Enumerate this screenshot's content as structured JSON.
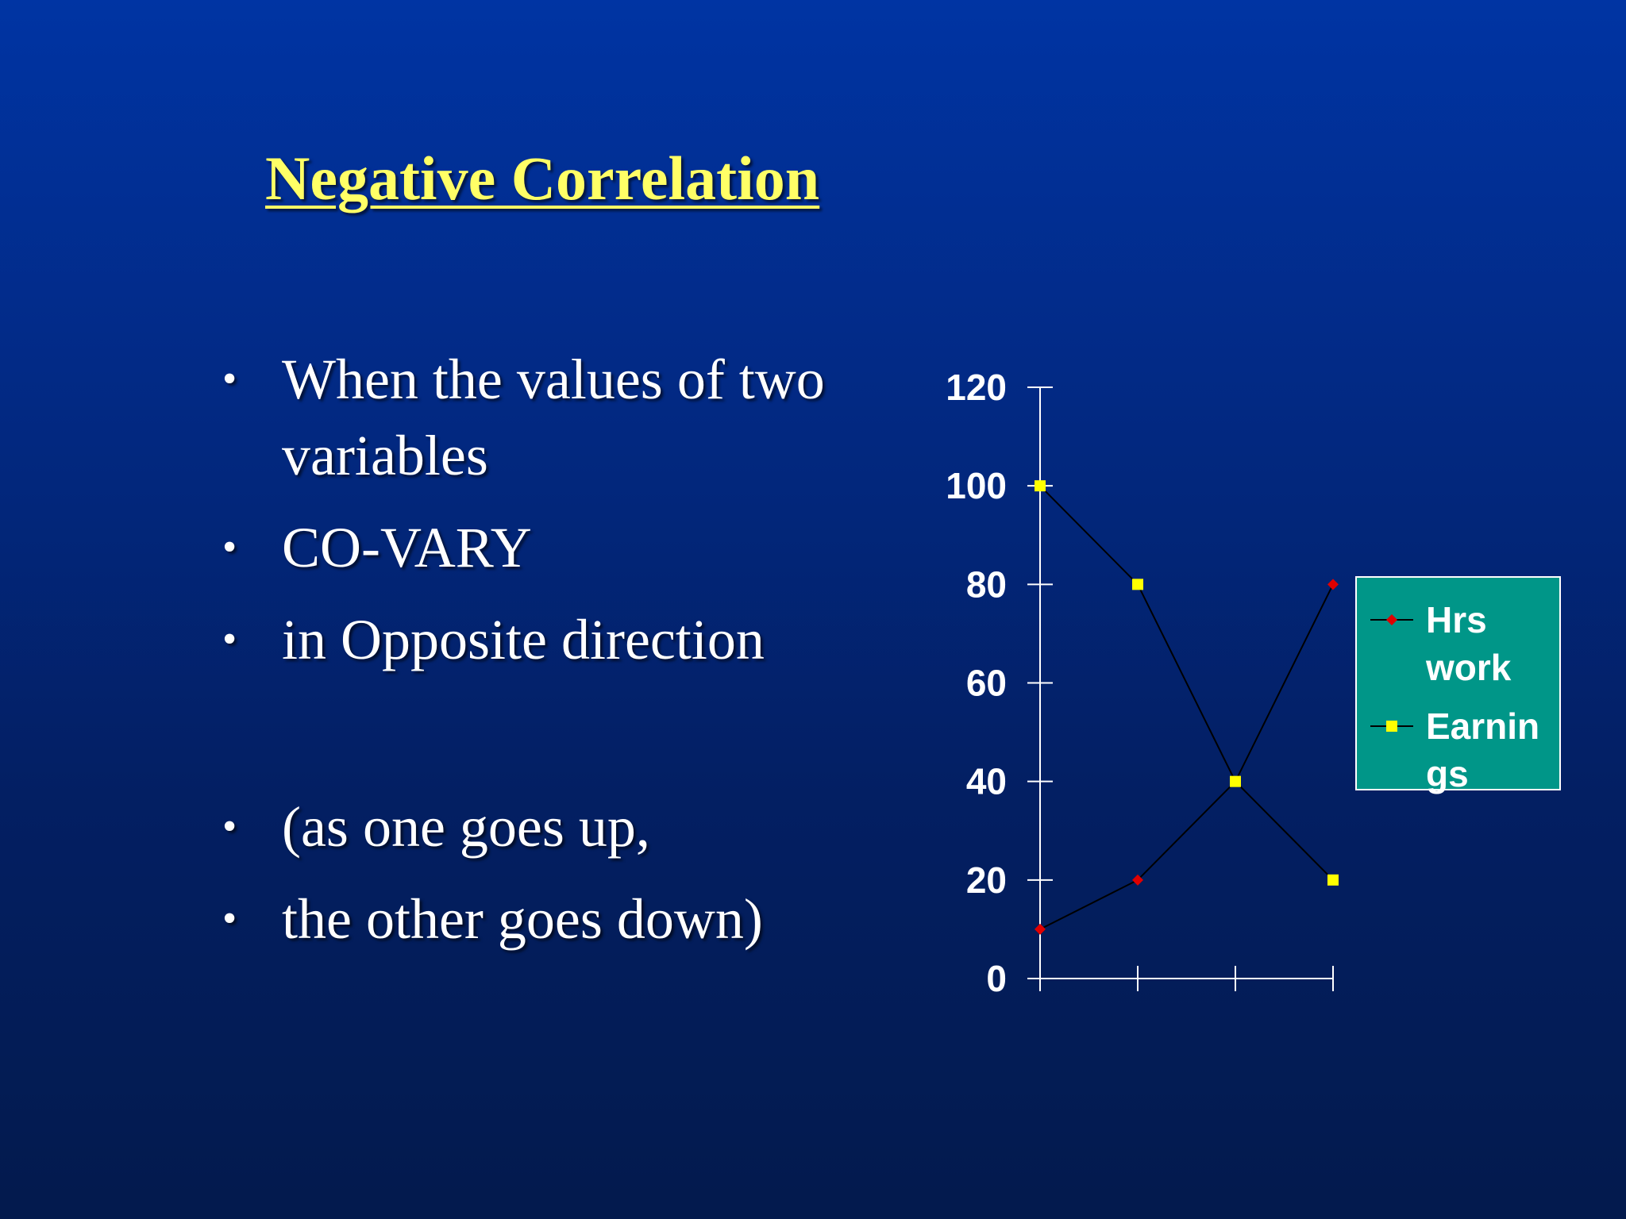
{
  "slide": {
    "title": "Negative Correlation",
    "bullets": [
      "When the values of two variables",
      "CO-VARY",
      "in Opposite direction",
      "(as one goes up,",
      "the other goes down)"
    ],
    "bullet_symbol": "•"
  },
  "chart_data": {
    "type": "line",
    "categories": [
      "",
      "",
      "",
      ""
    ],
    "ylim": [
      0,
      120
    ],
    "y_ticks": [
      0,
      20,
      40,
      60,
      80,
      100,
      120
    ],
    "y_tick_labels": [
      "0",
      "20",
      "40",
      "60",
      "80",
      "100",
      "120"
    ],
    "grid": false,
    "legend_position": "right",
    "series": [
      {
        "name": "Hrs work",
        "legend_lines": [
          "Hrs",
          "work"
        ],
        "values": [
          10,
          20,
          40,
          80
        ],
        "color": "#e00000",
        "marker": "diamond"
      },
      {
        "name": "Earnings",
        "legend_lines": [
          "Earnin",
          "gs"
        ],
        "values": [
          100,
          80,
          40,
          20
        ],
        "color": "#ffff00",
        "marker": "square"
      }
    ],
    "line_color": "#000000",
    "axis_color": "#ffffff",
    "legend_background": "#009688"
  },
  "colors": {
    "title": "#ffff66",
    "text": "#ffffff",
    "background_top": "#0034a3",
    "background_bottom": "#031a4d"
  }
}
